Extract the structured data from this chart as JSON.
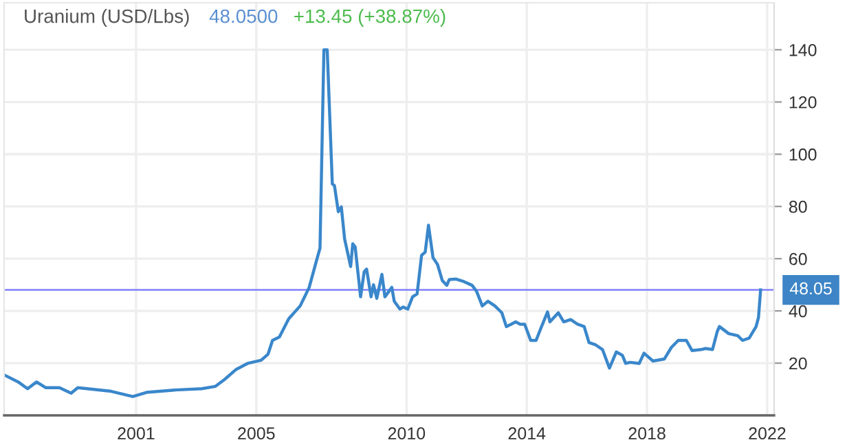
{
  "chart_data": {
    "type": "line",
    "title": "Uranium (USD/Lbs)",
    "subtitle": "48.0500",
    "annotations": [
      "+13.45 (+38.87%)"
    ],
    "x": [
      1996.61,
      1997.08,
      1997.39,
      1997.69,
      1997.99,
      1998.45,
      1998.84,
      1999.06,
      2000.13,
      2000.89,
      2001.35,
      2002.27,
      2003.18,
      2003.64,
      2003.94,
      2004.33,
      2004.71,
      2005.16,
      2005.39,
      2005.54,
      2005.77,
      2006.08,
      2006.46,
      2006.76,
      2006.99,
      2007.12,
      2007.25,
      2007.36,
      2007.53,
      2007.6,
      2007.73,
      2007.83,
      2007.94,
      2008.14,
      2008.21,
      2008.29,
      2008.47,
      2008.59,
      2008.67,
      2008.82,
      2008.9,
      2009.01,
      2009.18,
      2009.28,
      2009.51,
      2009.59,
      2009.78,
      2009.89,
      2010.04,
      2010.2,
      2010.35,
      2010.5,
      2010.62,
      2010.73,
      2010.88,
      2011.03,
      2011.19,
      2011.34,
      2011.42,
      2011.65,
      2011.87,
      2012.18,
      2012.33,
      2012.52,
      2012.71,
      2012.94,
      2013.17,
      2013.32,
      2013.48,
      2013.63,
      2013.78,
      2013.93,
      2014.13,
      2014.31,
      2014.46,
      2014.69,
      2014.77,
      2015.05,
      2015.23,
      2015.46,
      2015.69,
      2015.91,
      2016.07,
      2016.29,
      2016.52,
      2016.75,
      2016.98,
      2017.18,
      2017.29,
      2017.44,
      2017.74,
      2017.9,
      2018.2,
      2018.58,
      2018.81,
      2019.04,
      2019.31,
      2019.5,
      2019.8,
      2019.95,
      2020.18,
      2020.34,
      2020.41,
      2020.72,
      2021.02,
      2021.18,
      2021.4,
      2021.63,
      2021.71,
      2021.78
    ],
    "series": [
      {
        "color": "#3a87cb",
        "values": [
          15.5,
          12.8,
          10.2,
          12.8,
          10.6,
          10.6,
          8.5,
          10.6,
          9.3,
          7.2,
          8.8,
          9.7,
          10.2,
          11.1,
          13.7,
          17.6,
          19.9,
          21.1,
          23.4,
          28.7,
          30,
          37,
          41.9,
          49,
          58.7,
          64,
          140,
          140,
          88.6,
          88,
          78,
          79.8,
          67.5,
          57,
          65.7,
          64.5,
          45.4,
          55,
          56,
          45.4,
          50,
          44.8,
          54,
          45.4,
          49,
          43.7,
          40.7,
          41.5,
          40.7,
          45.4,
          46.5,
          61.3,
          62.5,
          72.8,
          60.4,
          57.8,
          51.6,
          49.8,
          52,
          52.2,
          51.4,
          49.8,
          47.5,
          41.9,
          43.7,
          41.9,
          39.3,
          34,
          34.9,
          35.8,
          34.9,
          34.9,
          28.7,
          28.7,
          33.1,
          39.6,
          35.8,
          39.3,
          35.8,
          36.7,
          34.9,
          34,
          27.9,
          27,
          25.2,
          18.1,
          24.3,
          23,
          19.9,
          20.3,
          19.9,
          23.8,
          20.8,
          21.6,
          26,
          28.7,
          28.7,
          24.8,
          25.2,
          25.6,
          25.2,
          32.2,
          34,
          31.3,
          30.5,
          28.7,
          29.6,
          34,
          37.5,
          48.05
        ]
      }
    ],
    "xlim": [
      1996.61,
      2022.23
    ],
    "ylim": [
      0,
      158
    ],
    "xticks": [
      2001,
      2005,
      2010,
      2014,
      2018,
      2022
    ],
    "yticks": [
      20,
      40,
      60,
      80,
      100,
      120,
      140
    ],
    "ref_lines": [
      {
        "axis": "y",
        "value": 48.05,
        "label": "48.05",
        "color": "#8080ff"
      }
    ],
    "grid": true,
    "legend": false
  }
}
